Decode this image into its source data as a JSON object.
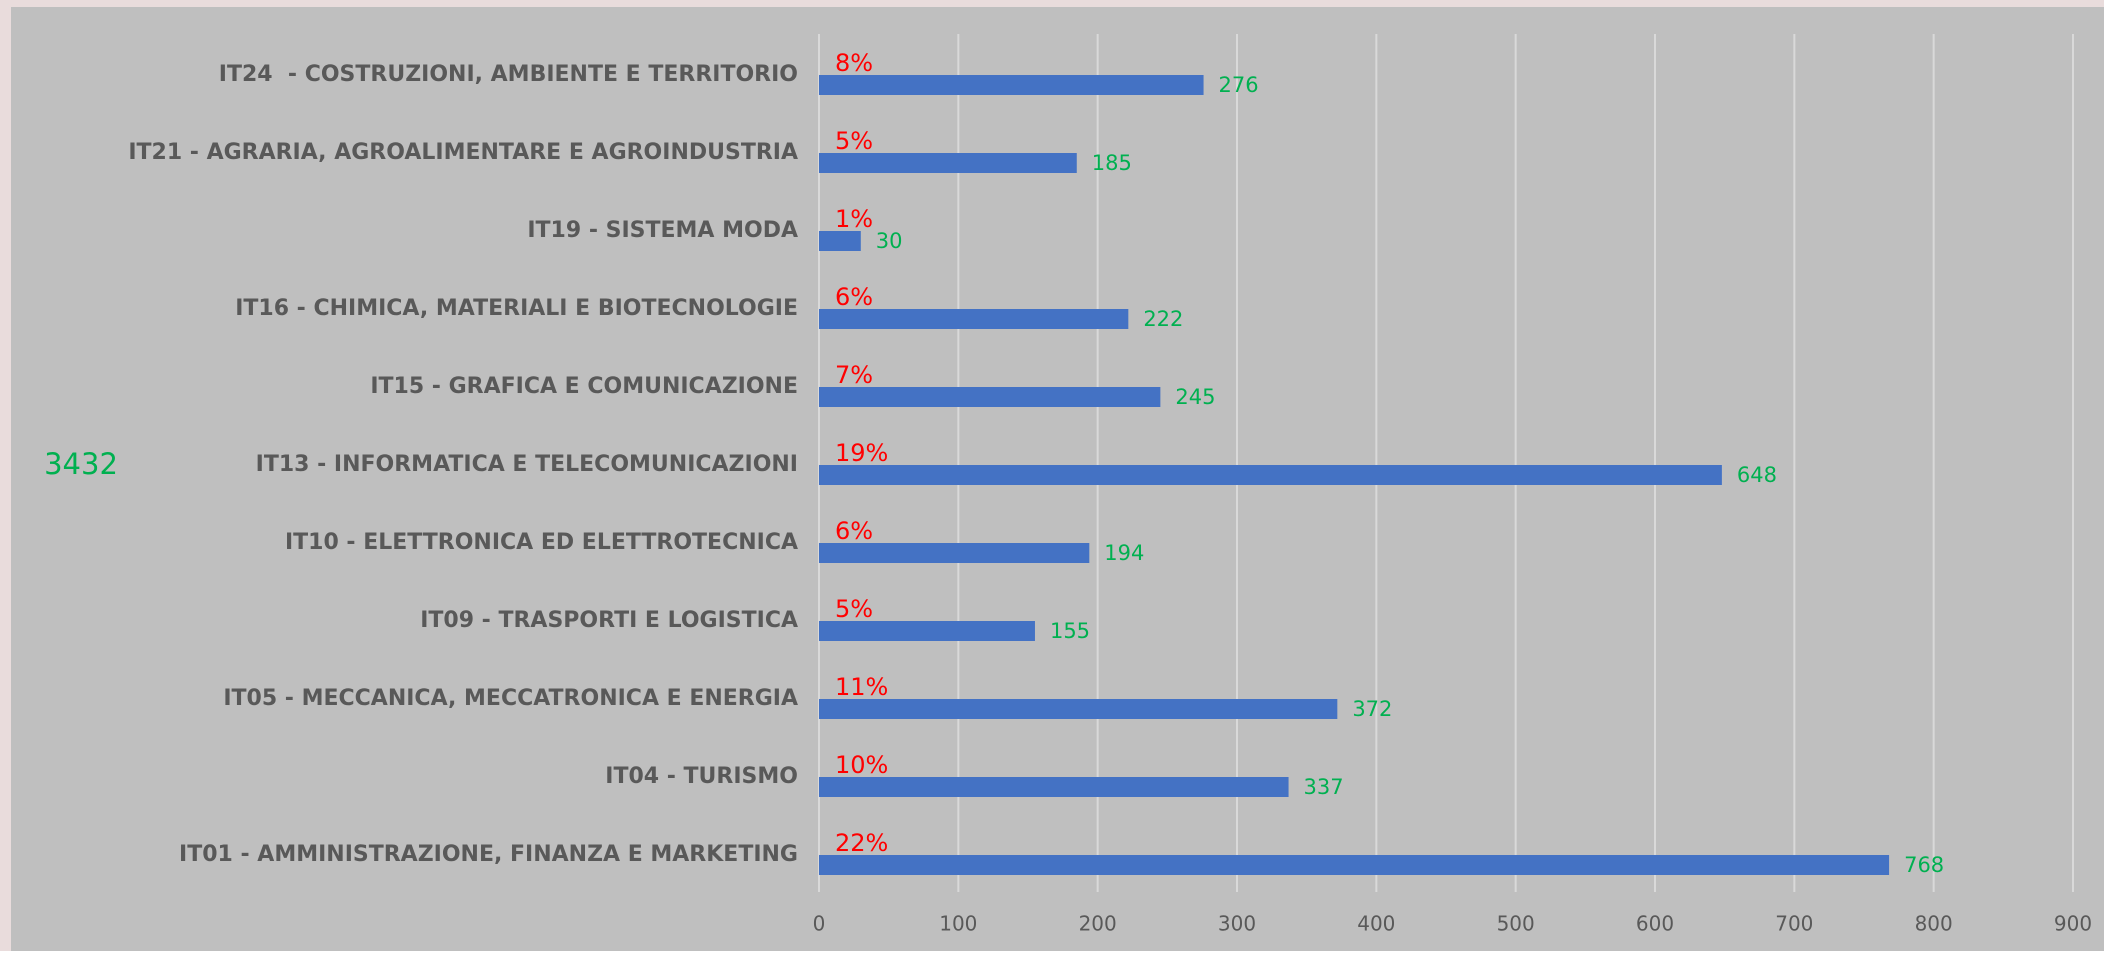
{
  "chart_data": {
    "type": "bar",
    "orientation": "horizontal",
    "categories": [
      "IT24  - COSTRUZIONI, AMBIENTE E TERRITORIO",
      "IT21 - AGRARIA, AGROALIMENTARE E AGROINDUSTRIA",
      "IT19 - SISTEMA MODA",
      "IT16 - CHIMICA, MATERIALI E BIOTECNOLOGIE",
      "IT15 - GRAFICA E COMUNICAZIONE",
      "IT13 - INFORMATICA E TELECOMUNICAZIONI",
      "IT10 - ELETTRONICA ED ELETTROTECNICA",
      "IT09 - TRASPORTI E LOGISTICA",
      "IT05 - MECCANICA, MECCATRONICA E ENERGIA",
      "IT04 - TURISMO",
      "IT01 - AMMINISTRAZIONE, FINANZA E MARKETING"
    ],
    "values": [
      276,
      185,
      30,
      222,
      245,
      648,
      194,
      155,
      372,
      337,
      768
    ],
    "shares": [
      8,
      5,
      1,
      6,
      7,
      19,
      6,
      5,
      11,
      10,
      22
    ],
    "share_labels": [
      "8%",
      "5%",
      "1%",
      "6%",
      "7%",
      "19%",
      "6%",
      "5%",
      "11%",
      "10%",
      "22%"
    ],
    "total": 3432,
    "color": "#4472c4",
    "value_label_color": "#00b050",
    "share_label_color": "#ff0000",
    "xlim": [
      0,
      900
    ],
    "xticks": [
      0,
      100,
      200,
      300,
      400,
      500,
      600,
      700,
      800,
      900
    ],
    "grid": true
  }
}
